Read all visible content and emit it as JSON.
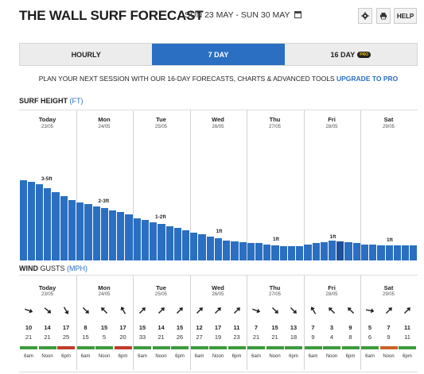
{
  "header": {
    "title": "THE WALL SURF FORECAST",
    "range": "SUN 23 MAY - SUN 30 MAY",
    "help_label": "HELP",
    "settings_icon": "gear-icon",
    "print_icon": "print-icon",
    "calendar_icon": "calendar-icon"
  },
  "tabs": [
    {
      "label": "HOURLY",
      "active": false,
      "badge": ""
    },
    {
      "label": "7 DAY",
      "active": true,
      "badge": ""
    },
    {
      "label": "16 DAY",
      "active": false,
      "badge": "PRO"
    }
  ],
  "promo": {
    "text": "PLAN YOUR NEXT SESSION WITH OUR 16-DAY FORECASTS, CHARTS & ADVANCED TOOLS",
    "link": "UPGRADE TO PRO"
  },
  "surf": {
    "title": "SURF HEIGHT",
    "unit": "(FT)"
  },
  "wind": {
    "title": "WIND",
    "subtitle": "GUSTS",
    "unit": "(MPH)"
  },
  "days": [
    {
      "name": "Today",
      "date": "23/05",
      "height_label": "3-5ft"
    },
    {
      "name": "Mon",
      "date": "24/05",
      "height_label": "2-3ft"
    },
    {
      "name": "Tue",
      "date": "25/05",
      "height_label": "1-2ft"
    },
    {
      "name": "Wed",
      "date": "26/05",
      "height_label": "1ft"
    },
    {
      "name": "Thu",
      "date": "27/05",
      "height_label": "1ft"
    },
    {
      "name": "Fri",
      "date": "28/05",
      "height_label": "1ft"
    },
    {
      "name": "Sat",
      "date": "29/05",
      "height_label": "1ft"
    }
  ],
  "times": [
    "6am",
    "Noon",
    "6pm"
  ],
  "colors": {
    "accent": "#2a6fc1",
    "bar": "#2a6fc1",
    "bar_dark": "#1d4f9a",
    "rating_good": "#3e9b3e",
    "rating_poor": "#c23b2b",
    "rating_fair": "#c8642a"
  },
  "chart_data": {
    "type": "bar",
    "title": "SURF HEIGHT",
    "ylabel": "(FT)",
    "ylim": [
      0,
      6
    ],
    "days": [
      "Today",
      "Mon",
      "Tue",
      "Wed",
      "Thu",
      "Fri",
      "Sat"
    ],
    "bars_per_day": 7,
    "values": [
      4.0,
      3.9,
      3.8,
      3.6,
      3.4,
      3.2,
      3.0,
      2.9,
      2.8,
      2.7,
      2.6,
      2.5,
      2.4,
      2.3,
      2.1,
      2.0,
      1.9,
      1.8,
      1.7,
      1.6,
      1.5,
      1.4,
      1.3,
      1.2,
      1.1,
      1.0,
      0.95,
      0.9,
      0.85,
      0.85,
      0.8,
      0.75,
      0.7,
      0.7,
      0.7,
      0.8,
      0.85,
      0.9,
      1.0,
      0.95,
      0.9,
      0.85,
      0.8,
      0.8,
      0.75,
      0.75,
      0.75,
      0.75,
      0.75
    ],
    "dark_indices": [
      39
    ]
  },
  "wind_data": [
    {
      "dirs": [
        110,
        130,
        150
      ],
      "speed": [
        10,
        14,
        17
      ],
      "gust": [
        21,
        21,
        25
      ],
      "rating": [
        "good",
        "good",
        "poor"
      ]
    },
    {
      "dirs": [
        135,
        315,
        330
      ],
      "speed": [
        8,
        15,
        17
      ],
      "gust": [
        15,
        5,
        20
      ],
      "rating": [
        "good",
        "good",
        "poor"
      ]
    },
    {
      "dirs": [
        45,
        45,
        45
      ],
      "speed": [
        15,
        14,
        15
      ],
      "gust": [
        33,
        21,
        26
      ],
      "rating": [
        "good",
        "good",
        "good"
      ]
    },
    {
      "dirs": [
        45,
        45,
        45
      ],
      "speed": [
        12,
        17,
        11
      ],
      "gust": [
        27,
        19,
        23
      ],
      "rating": [
        "good",
        "good",
        "good"
      ]
    },
    {
      "dirs": [
        110,
        135,
        135
      ],
      "speed": [
        7,
        15,
        13
      ],
      "gust": [
        21,
        21,
        18
      ],
      "rating": [
        "good",
        "good",
        "good"
      ]
    },
    {
      "dirs": [
        330,
        315,
        315
      ],
      "speed": [
        7,
        3,
        9
      ],
      "gust": [
        9,
        4,
        8
      ],
      "rating": [
        "good",
        "good",
        "good"
      ]
    },
    {
      "dirs": [
        100,
        45,
        45
      ],
      "speed": [
        5,
        7,
        11
      ],
      "gust": [
        6,
        9,
        11
      ],
      "rating": [
        "good",
        "fair",
        "good"
      ]
    }
  ]
}
